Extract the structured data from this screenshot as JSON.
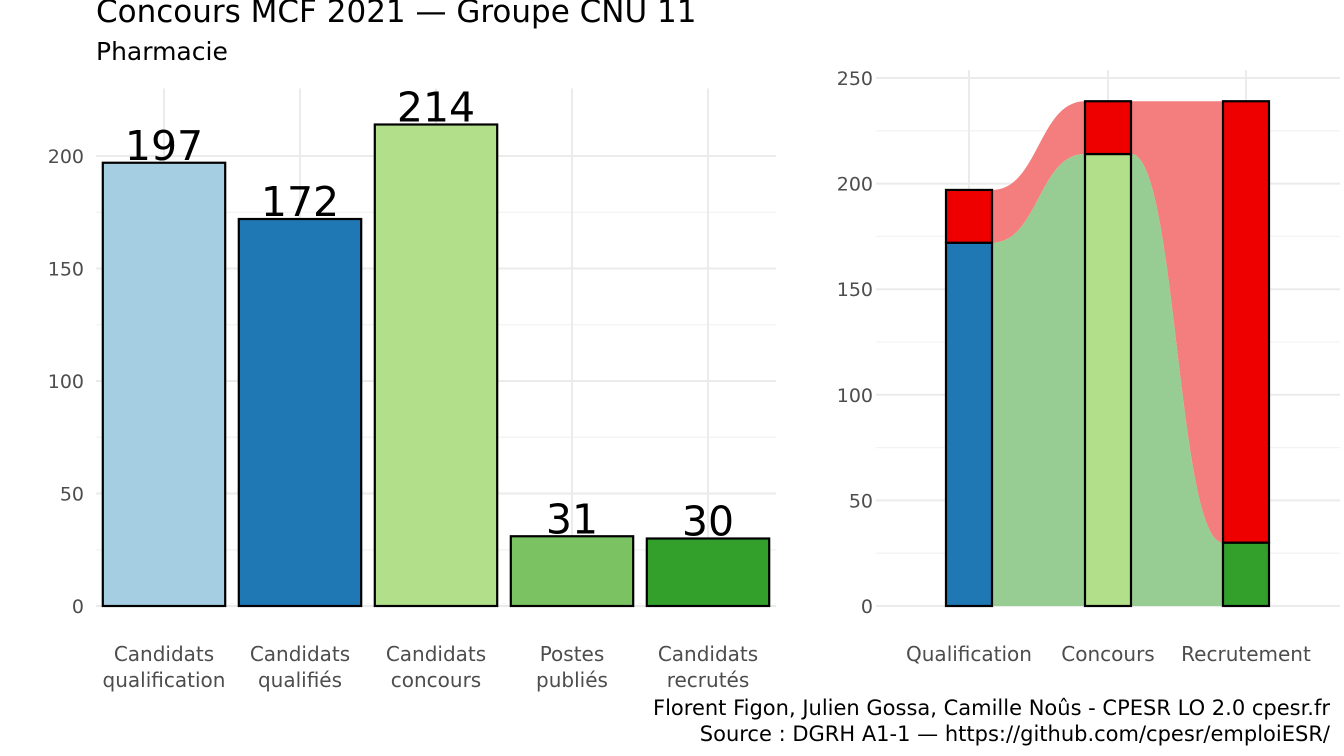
{
  "header": {
    "title": "Concours MCF  2021  —  Groupe CNU 11",
    "subtitle": "Pharmacie"
  },
  "caption": {
    "line1": "Florent Figon, Julien Gossa, Camille Noûs - CPESR LO 2.0 cpesr.fr",
    "line2": "Source : DGRH A1-1 — https://github.com/cpesr/emploiESR/"
  },
  "chart_data": [
    {
      "type": "bar",
      "categories": [
        [
          "Candidats",
          "qualification"
        ],
        [
          "Candidats",
          "qualifiés"
        ],
        [
          "Candidats",
          "concours"
        ],
        [
          "Postes",
          "publiés"
        ],
        [
          "Candidats",
          "recrutés"
        ]
      ],
      "values": [
        197,
        172,
        214,
        31,
        30
      ],
      "data_labels": [
        "197",
        "172",
        "214",
        "31",
        "30"
      ],
      "colors": [
        "#a6cee3",
        "#1f78b4",
        "#b2df8a",
        "#7bc362",
        "#33a02c"
      ],
      "ylim": [
        0,
        230
      ],
      "yticks": [
        0,
        50,
        100,
        150,
        200
      ],
      "grid": true
    },
    {
      "type": "bar",
      "stacked": true,
      "categories": [
        "Qualification",
        "Concours",
        "Recrutement"
      ],
      "series": [
        {
          "values": [
            172,
            214,
            30
          ],
          "colors": [
            "#1f78b4",
            "#b2df8a",
            "#33a02c"
          ]
        },
        {
          "values": [
            25,
            25,
            209
          ],
          "color": "#ee0000"
        }
      ],
      "flow_colors": {
        "green": "#97cc92",
        "red": "#f47e7e"
      },
      "ylim": [
        0,
        250
      ],
      "yticks": [
        0,
        50,
        100,
        150,
        200,
        250
      ],
      "grid": true
    }
  ]
}
